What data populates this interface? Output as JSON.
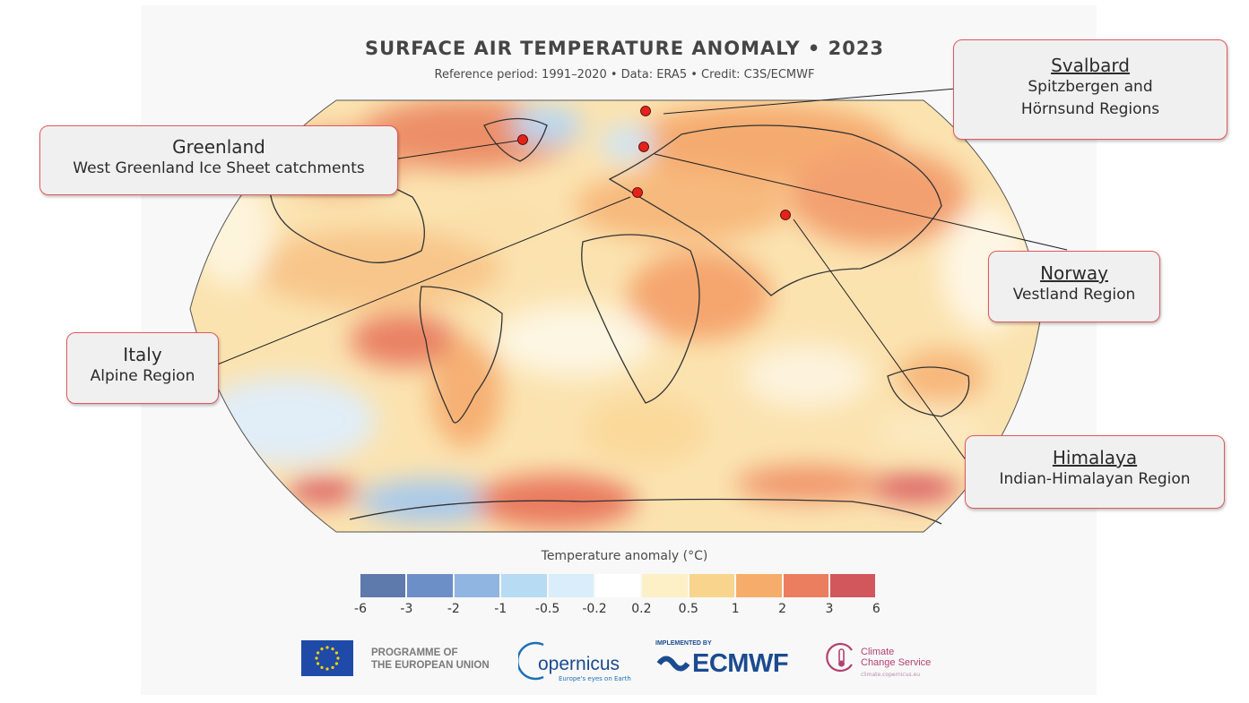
{
  "title": "SURFACE AIR TEMPERATURE ANOMALY • 2023",
  "subtitle": "Reference period: 1991–2020 • Data: ERA5 • Credit: C3S/ECMWF",
  "callouts": [
    {
      "name": "Svalbard",
      "desc": "Spitzbergen and Hörnsund Regions"
    },
    {
      "name": "Greenland",
      "desc": "West Greenland Ice Sheet catchments"
    },
    {
      "name": "Norway",
      "desc": "Vestland Region"
    },
    {
      "name": "Italy",
      "desc": "Alpine Region"
    },
    {
      "name": "Himalaya",
      "desc": "Indian-Himalayan Region"
    }
  ],
  "legend": {
    "title": "Temperature anomaly (°C)",
    "ticks": [
      "-6",
      "-3",
      "-2",
      "-1",
      "-0.5",
      "-0.2",
      "0.2",
      "0.5",
      "1",
      "2",
      "3",
      "6"
    ],
    "colors": [
      "#5e79ab",
      "#6d8fc8",
      "#8fb5e0",
      "#b7dbf3",
      "#d9eefa",
      "#ffffff",
      "#fdf0c6",
      "#f9d48d",
      "#f6ad6b",
      "#eb7e5f",
      "#d1575c"
    ]
  },
  "footer": {
    "programme_line1": "PROGRAMME OF",
    "programme_line2": "THE EUROPEAN UNION",
    "copernicus": "opernicus",
    "copernicus_tag": "Europe's eyes on Earth",
    "implemented_by": "IMPLEMENTED BY",
    "ecmwf": "ECMWF",
    "c3s_line1": "Climate",
    "c3s_line2": "Change Service",
    "c3s_url": "climate.copernicus.eu"
  }
}
